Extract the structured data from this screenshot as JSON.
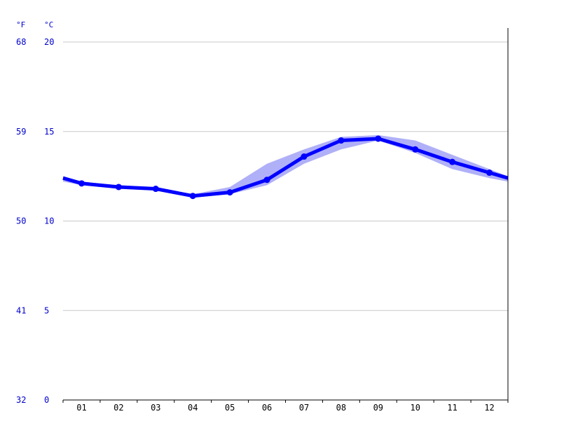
{
  "chart_data": {
    "type": "line",
    "title": "",
    "xlabel": "",
    "ylabel": "",
    "categories": [
      "01",
      "02",
      "03",
      "04",
      "05",
      "06",
      "07",
      "08",
      "09",
      "10",
      "11",
      "12"
    ],
    "unit_f": "°F",
    "unit_c": "°C",
    "y_ticks_c": [
      "20",
      "15",
      "10",
      "5",
      "0"
    ],
    "y_ticks_f": [
      "68",
      "59",
      "50",
      "41",
      "32"
    ],
    "ylim": [
      0,
      20
    ],
    "grid": true,
    "series": [
      {
        "values": [
          12.1,
          11.9,
          11.8,
          11.4,
          11.6,
          12.3,
          13.6,
          14.5,
          14.6,
          14.0,
          13.3,
          12.7
        ],
        "start_value": 12.4,
        "end_value": 12.4,
        "range_low": [
          12.0,
          11.8,
          11.7,
          11.3,
          11.5,
          12.0,
          13.2,
          14.0,
          14.5,
          13.8,
          12.9,
          12.4
        ],
        "range_high": [
          12.2,
          12.0,
          11.9,
          11.5,
          11.9,
          13.2,
          14.0,
          14.7,
          14.8,
          14.5,
          13.7,
          12.9
        ],
        "range_start": [
          12.2,
          12.5
        ],
        "range_end": [
          12.2,
          12.5
        ],
        "line_color": "#0000ff",
        "band_color": "#b0b0f8"
      }
    ]
  }
}
